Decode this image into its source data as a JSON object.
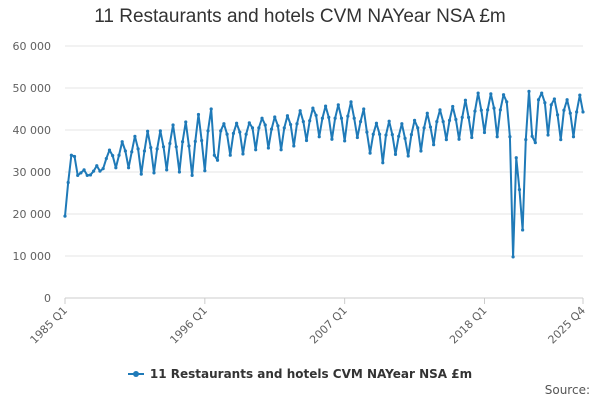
{
  "chart_data": {
    "type": "line",
    "title": "11 Restaurants and hotels CVM NAYear NSA £m",
    "xlabel": "",
    "ylabel": "",
    "ylim": [
      0,
      60000
    ],
    "yticks": [
      "0",
      "10 000",
      "20 000",
      "30 000",
      "40 000",
      "50 000",
      "60 000"
    ],
    "ytick_values": [
      0,
      10000,
      20000,
      30000,
      40000,
      50000,
      60000
    ],
    "xticks": [
      "1985 Q1",
      "1996 Q1",
      "2007 Q1",
      "2018 Q1",
      "2025 Q4"
    ],
    "grid": true,
    "legend": "bottom",
    "color": "#1f7ab8",
    "source_label": "Source:",
    "series": [
      {
        "name": "11 Restaurants and hotels CVM NAYear NSA £m",
        "x": [
          "1985 Q1",
          "1985 Q2",
          "1985 Q3",
          "1985 Q4",
          "1986 Q1",
          "1986 Q2",
          "1986 Q3",
          "1986 Q4",
          "1987 Q1",
          "1987 Q2",
          "1987 Q3",
          "1987 Q4",
          "1988 Q1",
          "1988 Q2",
          "1988 Q3",
          "1988 Q4",
          "1989 Q1",
          "1989 Q2",
          "1989 Q3",
          "1989 Q4",
          "1990 Q1",
          "1990 Q2",
          "1990 Q3",
          "1990 Q4",
          "1991 Q1",
          "1991 Q2",
          "1991 Q3",
          "1991 Q4",
          "1992 Q1",
          "1992 Q2",
          "1992 Q3",
          "1992 Q4",
          "1993 Q1",
          "1993 Q2",
          "1993 Q3",
          "1993 Q4",
          "1994 Q1",
          "1994 Q2",
          "1994 Q3",
          "1994 Q4",
          "1995 Q1",
          "1995 Q2",
          "1995 Q3",
          "1995 Q4",
          "1996 Q1",
          "1996 Q2",
          "1996 Q3",
          "1996 Q4",
          "1997 Q1",
          "1997 Q2",
          "1997 Q3",
          "1997 Q4",
          "1998 Q1",
          "1998 Q2",
          "1998 Q3",
          "1998 Q4",
          "1999 Q1",
          "1999 Q2",
          "1999 Q3",
          "1999 Q4",
          "2000 Q1",
          "2000 Q2",
          "2000 Q3",
          "2000 Q4",
          "2001 Q1",
          "2001 Q2",
          "2001 Q3",
          "2001 Q4",
          "2002 Q1",
          "2002 Q2",
          "2002 Q3",
          "2002 Q4",
          "2003 Q1",
          "2003 Q2",
          "2003 Q3",
          "2003 Q4",
          "2004 Q1",
          "2004 Q2",
          "2004 Q3",
          "2004 Q4",
          "2005 Q1",
          "2005 Q2",
          "2005 Q3",
          "2005 Q4",
          "2006 Q1",
          "2006 Q2",
          "2006 Q3",
          "2006 Q4",
          "2007 Q1",
          "2007 Q2",
          "2007 Q3",
          "2007 Q4",
          "2008 Q1",
          "2008 Q2",
          "2008 Q3",
          "2008 Q4",
          "2009 Q1",
          "2009 Q2",
          "2009 Q3",
          "2009 Q4",
          "2010 Q1",
          "2010 Q2",
          "2010 Q3",
          "2010 Q4",
          "2011 Q1",
          "2011 Q2",
          "2011 Q3",
          "2011 Q4",
          "2012 Q1",
          "2012 Q2",
          "2012 Q3",
          "2012 Q4",
          "2013 Q1",
          "2013 Q2",
          "2013 Q3",
          "2013 Q4",
          "2014 Q1",
          "2014 Q2",
          "2014 Q3",
          "2014 Q4",
          "2015 Q1",
          "2015 Q2",
          "2015 Q3",
          "2015 Q4",
          "2016 Q1",
          "2016 Q2",
          "2016 Q3",
          "2016 Q4",
          "2017 Q1",
          "2017 Q2",
          "2017 Q3",
          "2017 Q4",
          "2018 Q1",
          "2018 Q2",
          "2018 Q3",
          "2018 Q4",
          "2019 Q1",
          "2019 Q2",
          "2019 Q3",
          "2019 Q4",
          "2020 Q1",
          "2020 Q2",
          "2020 Q3",
          "2020 Q4",
          "2021 Q1",
          "2021 Q2",
          "2021 Q3",
          "2021 Q4",
          "2022 Q1",
          "2022 Q2",
          "2022 Q3",
          "2022 Q4",
          "2023 Q1",
          "2023 Q2",
          "2023 Q3",
          "2023 Q4",
          "2024 Q1",
          "2024 Q2",
          "2024 Q3",
          "2024 Q4",
          "2025 Q1",
          "2025 Q2",
          "2025 Q3",
          "2025 Q4"
        ],
        "values": [
          19500,
          27500,
          34000,
          33700,
          29200,
          29800,
          30500,
          29200,
          29300,
          30200,
          31500,
          30200,
          30800,
          33200,
          35200,
          33900,
          31000,
          34000,
          37200,
          35000,
          31000,
          34800,
          38500,
          35500,
          29500,
          35000,
          39700,
          35800,
          29800,
          35500,
          39800,
          36000,
          30500,
          36800,
          41200,
          36000,
          30000,
          37200,
          41900,
          36200,
          29200,
          37300,
          43700,
          37500,
          30300,
          39800,
          45000,
          34000,
          32800,
          39800,
          41500,
          39000,
          34000,
          39200,
          41600,
          39500,
          34300,
          39000,
          41700,
          40500,
          35300,
          40500,
          42800,
          41200,
          35700,
          40200,
          43100,
          41000,
          35300,
          40500,
          43400,
          41300,
          36200,
          41500,
          44600,
          42000,
          37500,
          42200,
          45200,
          43500,
          38400,
          42800,
          45700,
          43000,
          37800,
          42800,
          46000,
          42800,
          37400,
          43300,
          46700,
          42800,
          38200,
          42000,
          45000,
          39500,
          34500,
          39000,
          41600,
          39000,
          32200,
          38800,
          42100,
          38900,
          34200,
          38500,
          41500,
          38000,
          33800,
          38900,
          42300,
          40500,
          35000,
          40500,
          44000,
          40700,
          36500,
          42000,
          44800,
          42000,
          37700,
          42300,
          45600,
          42500,
          37800,
          43000,
          47100,
          43000,
          38200,
          44500,
          48800,
          44700,
          39400,
          44800,
          48600,
          45200,
          38400,
          44800,
          48400,
          46700,
          38400,
          9800,
          33400,
          25800,
          16200,
          37700,
          49200,
          38500,
          37000,
          47200,
          48800,
          46500,
          38800,
          46000,
          47400,
          43600,
          37700,
          44700,
          47200,
          44000,
          38400,
          44300,
          48300,
          44300
        ]
      }
    ]
  }
}
